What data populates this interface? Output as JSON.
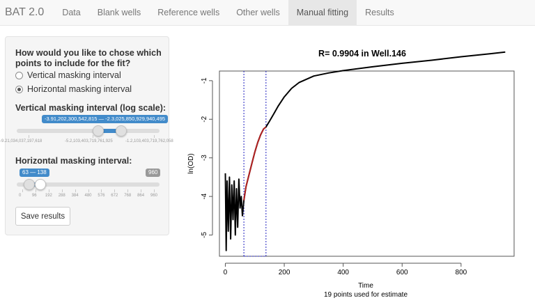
{
  "app": {
    "brand": "BAT 2.0"
  },
  "nav": {
    "tabs": [
      {
        "label": "Data"
      },
      {
        "label": "Blank wells"
      },
      {
        "label": "Reference wells"
      },
      {
        "label": "Other wells"
      },
      {
        "label": "Manual fitting"
      },
      {
        "label": "Results"
      }
    ],
    "active": "Manual fitting"
  },
  "sidebar": {
    "question": "How would you like to chose which points to include for the fit?",
    "options": [
      {
        "label": "Vertical masking interval",
        "checked": false
      },
      {
        "label": "Horizontal masking interval",
        "checked": true
      }
    ],
    "vertical": {
      "label": "Vertical masking interval (log scale):",
      "value_text": "-3.91,202,300,542,815 — -2.3,025,850,929,940,495",
      "min_text": "-9.21,034,037,197,618",
      "max_text": "-2.3,025,850,929,940,495",
      "tick_labels": [
        "-9.21,034,037,197,618",
        "-5.2,103,403,719,761,925",
        "-1.2,103,403,719,762,058"
      ]
    },
    "horizontal": {
      "label": "Horizontal masking interval:",
      "value_text": "63 — 138",
      "max_text": "960",
      "tick_labels": [
        "0",
        "96",
        "192",
        "288",
        "384",
        "480",
        "576",
        "672",
        "768",
        "864",
        "960"
      ]
    },
    "save_label": "Save results"
  },
  "plot": {
    "title": "R= 0.9904 in Well.146",
    "xlabel": "Time",
    "subtitle": "19 points used for estimate",
    "ylabel": "ln(OD)"
  },
  "colors": {
    "accent": "#428bca",
    "fit_segment": "#b22222",
    "mask_lines": "#1f1fbf"
  },
  "chart_data": {
    "type": "line",
    "title": "R= 0.9904 in Well.146",
    "xlabel": "Time",
    "ylabel": "ln(OD)",
    "xlim": [
      -20,
      980
    ],
    "ylim": [
      -5.55,
      -0.75
    ],
    "x_ticks": [
      0,
      200,
      400,
      600,
      800
    ],
    "y_ticks": [
      -5,
      -4,
      -3,
      -2,
      -1
    ],
    "mask_interval": [
      63,
      138
    ],
    "series": [
      {
        "color": "#000000",
        "points": [
          [
            0,
            -3.4
          ],
          [
            3,
            -5.4
          ],
          [
            6,
            -3.6
          ],
          [
            10,
            -4.9
          ],
          [
            14,
            -3.5
          ],
          [
            18,
            -5.1
          ],
          [
            22,
            -3.7
          ],
          [
            26,
            -4.6
          ],
          [
            30,
            -3.6
          ],
          [
            34,
            -5.0
          ],
          [
            38,
            -3.8
          ],
          [
            42,
            -4.8
          ],
          [
            46,
            -3.55
          ],
          [
            50,
            -4.3
          ],
          [
            54,
            -4.0
          ],
          [
            58,
            -4.5
          ],
          [
            63,
            -4.1
          ],
          [
            70,
            -3.75
          ],
          [
            80,
            -3.45
          ],
          [
            90,
            -3.15
          ],
          [
            100,
            -2.85
          ],
          [
            110,
            -2.6
          ],
          [
            120,
            -2.4
          ],
          [
            130,
            -2.25
          ],
          [
            138,
            -2.2
          ],
          [
            150,
            -2.05
          ],
          [
            165,
            -1.85
          ],
          [
            180,
            -1.65
          ],
          [
            200,
            -1.42
          ],
          [
            225,
            -1.2
          ],
          [
            250,
            -1.05
          ],
          [
            300,
            -0.88
          ],
          [
            350,
            -0.8
          ],
          [
            400,
            -0.74
          ],
          [
            500,
            -0.64
          ],
          [
            600,
            -0.55
          ],
          [
            700,
            -0.47
          ],
          [
            800,
            -0.38
          ],
          [
            900,
            -0.3
          ],
          [
            950,
            -0.26
          ]
        ]
      },
      {
        "color": "#b22222",
        "points": [
          [
            63,
            -4.1
          ],
          [
            70,
            -3.75
          ],
          [
            80,
            -3.45
          ],
          [
            90,
            -3.15
          ],
          [
            100,
            -2.85
          ],
          [
            110,
            -2.6
          ],
          [
            120,
            -2.4
          ],
          [
            130,
            -2.25
          ],
          [
            138,
            -2.2
          ]
        ]
      }
    ]
  }
}
